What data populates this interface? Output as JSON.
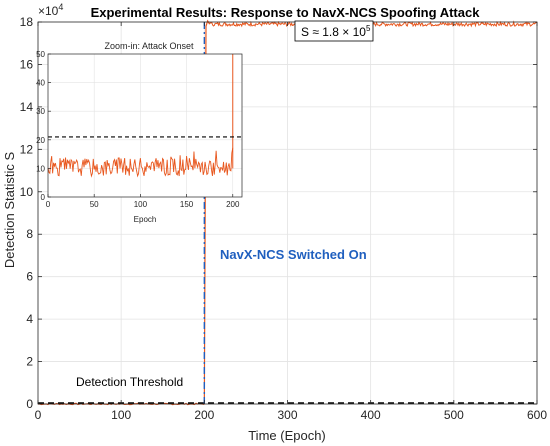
{
  "chart_data": [
    {
      "type": "line",
      "title": "Experimental Results: Response to NavX-NCS Spoofing Attack",
      "xlabel": "Time (Epoch)",
      "ylabel": "Detection Statistic S",
      "y_exponent_label": "×10",
      "y_exponent_power": "4",
      "xlim": [
        0,
        600
      ],
      "ylim": [
        0,
        180000
      ],
      "x_ticks": [
        0,
        100,
        200,
        300,
        400,
        500,
        600
      ],
      "x_tick_labels": [
        "0",
        "100",
        "200",
        "300",
        "400",
        "500",
        "600"
      ],
      "y_ticks": [
        0,
        20000,
        40000,
        60000,
        80000,
        100000,
        120000,
        140000,
        160000,
        180000
      ],
      "y_tick_labels": [
        "0",
        "2",
        "4",
        "6",
        "8",
        "10",
        "12",
        "14",
        "16",
        "18"
      ],
      "grid": true,
      "series": [
        {
          "color": "#e8571e",
          "segments": [
            {
              "x_range": [
                0,
                200
              ],
              "level": 11
            },
            {
              "x": [
                200,
                202,
                204,
                206,
                208
              ],
              "y": [
                11,
                178000,
                180500,
                179200,
                179800
              ]
            },
            {
              "x_range": [
                208,
                600
              ],
              "level": 179000,
              "noise": 900
            }
          ]
        }
      ],
      "threshold": {
        "value": 21,
        "label": "Detection Threshold",
        "style": "dashed",
        "color": "#000000"
      },
      "switch_on": {
        "x": 200,
        "label": "NavX-NCS Switched On",
        "color": "#1f5fbf",
        "style": "dash-dot"
      },
      "callout": {
        "text": "S ≈ 1.8 × 10",
        "sup": "5"
      }
    },
    {
      "type": "line",
      "title": "Zoom-in: Attack Onset",
      "xlabel": "Epoch",
      "ylabel": "",
      "xlim": [
        0,
        210
      ],
      "ylim": [
        0,
        50
      ],
      "x_ticks": [
        0,
        50,
        100,
        150,
        200
      ],
      "x_tick_labels": [
        "0",
        "50",
        "100",
        "150",
        "200"
      ],
      "y_ticks": [
        0,
        10,
        20,
        30,
        40,
        50
      ],
      "y_tick_labels": [
        "0",
        "10",
        "20",
        "30",
        "40",
        "50"
      ],
      "grid": true,
      "series": [
        {
          "color": "#e8571e",
          "mean": 10.5,
          "noise": 1.6,
          "x_range": [
            0,
            200
          ],
          "spike_at": 200
        }
      ],
      "threshold": {
        "value": 21,
        "style": "dashed",
        "color": "#000000"
      }
    }
  ]
}
